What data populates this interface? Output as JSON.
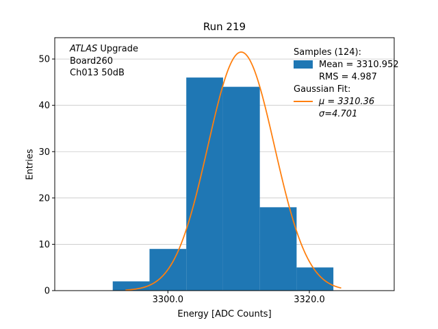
{
  "title": "Run 219",
  "xlabel": "Energy [ADC Counts]",
  "ylabel": "Entries",
  "annotation": {
    "atlas": "ATLAS",
    "upgrade": " Upgrade",
    "board": "Board260",
    "channel": "Ch013 50dB"
  },
  "legend": {
    "samples_header": "Samples (124):",
    "mean": "Mean = 3310.952",
    "rms": "RMS = 4.987",
    "fit_header": "Gaussian Fit:",
    "mu": "μ = 3310.36",
    "sigma": "σ=4.701"
  },
  "chart_data": {
    "type": "bar",
    "title": "Run 219",
    "xlabel": "Energy [ADC Counts]",
    "ylabel": "Entries",
    "xlim": [
      3284,
      3332
    ],
    "ylim": [
      0,
      54.6
    ],
    "xticks": [
      3300,
      3320
    ],
    "xtick_labels": [
      "3300.0",
      "3320.0"
    ],
    "yticks": [
      0,
      10,
      20,
      30,
      40,
      50
    ],
    "ytick_labels": [
      "0",
      "10",
      "20",
      "30",
      "40",
      "50"
    ],
    "grid": "horizontal",
    "grid_color": "#c6c6c6",
    "histogram": {
      "bin_edges": [
        3292.2,
        3297.4,
        3302.6,
        3307.8,
        3313.0,
        3318.2,
        3323.4
      ],
      "counts": [
        2,
        9,
        46,
        44,
        18,
        5
      ],
      "color": "#1f77b4",
      "total_entries": 124
    },
    "gaussian_fit": {
      "amplitude": 51.5,
      "mu": 3310.36,
      "sigma": 4.701,
      "x_range": [
        3294,
        3324.5
      ],
      "color": "#ff7f0e"
    },
    "stats": {
      "samples": 124,
      "mean": 3310.952,
      "rms": 4.987
    }
  }
}
